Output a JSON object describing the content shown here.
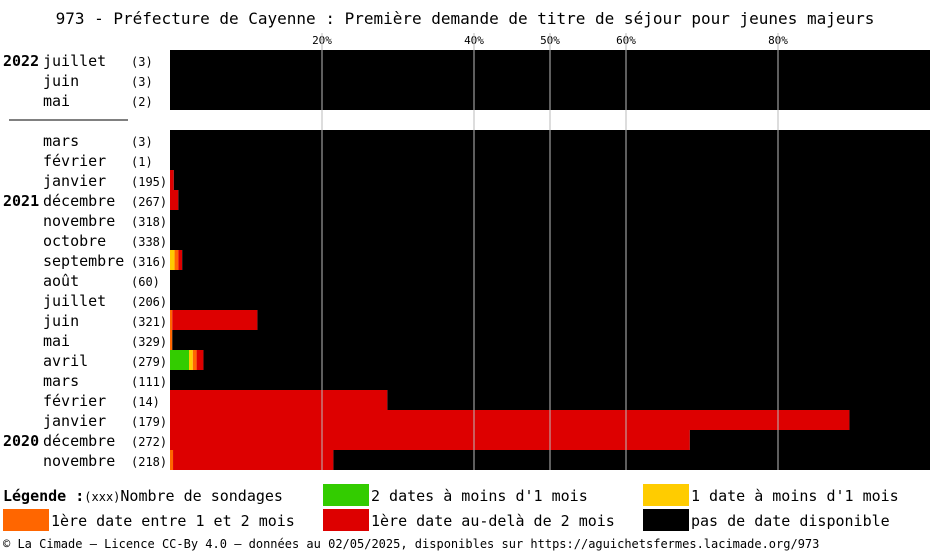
{
  "title": "973 - Préfecture de Cayenne : Première demande de titre de séjour pour jeunes majeurs",
  "colors": {
    "vert": "#33cc00",
    "jaune": "#ffcc00",
    "orange": "#ff6600",
    "rouge": "#dd0000",
    "noir": "#000000"
  },
  "chart_data": {
    "type": "bar",
    "orientation": "horizontal",
    "stacked": true,
    "normalized_percent": true,
    "title": "973 - Préfecture de Cayenne : Première demande de titre de séjour pour jeunes majeurs",
    "xlim": [
      0,
      100
    ],
    "x_ticks": [
      {
        "value": 20,
        "label": "20%"
      },
      {
        "value": 40,
        "label": "40%"
      },
      {
        "value": 50,
        "label": "50%"
      },
      {
        "value": 60,
        "label": "60%"
      },
      {
        "value": 80,
        "label": "80%"
      }
    ],
    "grid": "vertical lines at ticks",
    "legend_placement": "bottom",
    "series_order": [
      "vert",
      "jaune",
      "orange",
      "rouge",
      "noir"
    ],
    "rows": [
      {
        "year": "2022",
        "month": "juillet",
        "count": "(3)",
        "values": {
          "vert": 0,
          "jaune": 0,
          "orange": 0,
          "rouge": 0,
          "noir": 100
        }
      },
      {
        "year": "",
        "month": "juin",
        "count": "(3)",
        "values": {
          "vert": 0,
          "jaune": 0,
          "orange": 0,
          "rouge": 0,
          "noir": 100
        }
      },
      {
        "year": "",
        "month": "mai",
        "count": "(2)",
        "values": {
          "vert": 0,
          "jaune": 0,
          "orange": 0,
          "rouge": 0,
          "noir": 100
        }
      },
      {
        "gap": true
      },
      {
        "year": "",
        "month": "mars",
        "count": "(3)",
        "values": {
          "vert": 0,
          "jaune": 0,
          "orange": 0,
          "rouge": 0,
          "noir": 100
        }
      },
      {
        "year": "",
        "month": "février",
        "count": "(1)",
        "values": {
          "vert": 0,
          "jaune": 0,
          "orange": 0,
          "rouge": 0,
          "noir": 100
        }
      },
      {
        "year": "",
        "month": "janvier",
        "count": "(195)",
        "values": {
          "vert": 0,
          "jaune": 0,
          "orange": 0,
          "rouge": 0.5,
          "noir": 99.5
        }
      },
      {
        "year": "2021",
        "month": "décembre",
        "count": "(267)",
        "values": {
          "vert": 0,
          "jaune": 0,
          "orange": 0,
          "rouge": 1.1,
          "noir": 98.9
        }
      },
      {
        "year": "",
        "month": "novembre",
        "count": "(318)",
        "values": {
          "vert": 0,
          "jaune": 0,
          "orange": 0,
          "rouge": 0,
          "noir": 100
        }
      },
      {
        "year": "",
        "month": "octobre",
        "count": "(338)",
        "values": {
          "vert": 0,
          "jaune": 0,
          "orange": 0,
          "rouge": 0,
          "noir": 100
        }
      },
      {
        "year": "",
        "month": "septembre",
        "count": "(316)",
        "values": {
          "vert": 0,
          "jaune": 0.6,
          "orange": 0.5,
          "rouge": 0.5,
          "noir": 98.4
        }
      },
      {
        "year": "",
        "month": "août",
        "count": "(60)",
        "values": {
          "vert": 0,
          "jaune": 0,
          "orange": 0,
          "rouge": 0,
          "noir": 100
        }
      },
      {
        "year": "",
        "month": "juillet",
        "count": "(206)",
        "values": {
          "vert": 0,
          "jaune": 0,
          "orange": 0,
          "rouge": 0,
          "noir": 100
        }
      },
      {
        "year": "",
        "month": "juin",
        "count": "(321)",
        "values": {
          "vert": 0,
          "jaune": 0,
          "orange": 0.3,
          "rouge": 11.2,
          "noir": 88.5
        }
      },
      {
        "year": "",
        "month": "mai",
        "count": "(329)",
        "values": {
          "vert": 0,
          "jaune": 0,
          "orange": 0.3,
          "rouge": 0,
          "noir": 99.7
        }
      },
      {
        "year": "",
        "month": "avril",
        "count": "(279)",
        "values": {
          "vert": 2.5,
          "jaune": 0.5,
          "orange": 0.5,
          "rouge": 0.9,
          "noir": 95.6
        }
      },
      {
        "year": "",
        "month": "mars",
        "count": "(111)",
        "values": {
          "vert": 0,
          "jaune": 0,
          "orange": 0,
          "rouge": 0,
          "noir": 100
        }
      },
      {
        "year": "",
        "month": "février",
        "count": "(14)",
        "values": {
          "vert": 0,
          "jaune": 0,
          "orange": 0,
          "rouge": 28.6,
          "noir": 71.4
        }
      },
      {
        "year": "",
        "month": "janvier",
        "count": "(179)",
        "values": {
          "vert": 0,
          "jaune": 0,
          "orange": 0,
          "rouge": 89.4,
          "noir": 10.6
        }
      },
      {
        "year": "2020",
        "month": "décembre",
        "count": "(272)",
        "values": {
          "vert": 0,
          "jaune": 0,
          "orange": 0,
          "rouge": 68.4,
          "noir": 31.6
        }
      },
      {
        "year": "",
        "month": "novembre",
        "count": "(218)",
        "values": {
          "vert": 0,
          "jaune": 0,
          "orange": 0.4,
          "rouge": 21.1,
          "noir": 78.5
        }
      }
    ]
  },
  "legend": {
    "label": "Légende :",
    "count_hint": "(xxx)",
    "count_desc": "Nombre de sondages",
    "items": [
      {
        "key": "vert",
        "label": "2 dates à moins d'1 mois"
      },
      {
        "key": "jaune",
        "label": "1 date à moins d'1 mois"
      },
      {
        "key": "orange",
        "label": "1ère date entre 1 et 2 mois"
      },
      {
        "key": "rouge",
        "label": "1ère date au-delà de 2 mois"
      },
      {
        "key": "noir",
        "label": "pas de date disponible"
      }
    ]
  },
  "footer": "© La Cimade — Licence CC-By 4.0 — données au 02/05/2025, disponibles sur https://aguichetsfermes.lacimade.org/973"
}
